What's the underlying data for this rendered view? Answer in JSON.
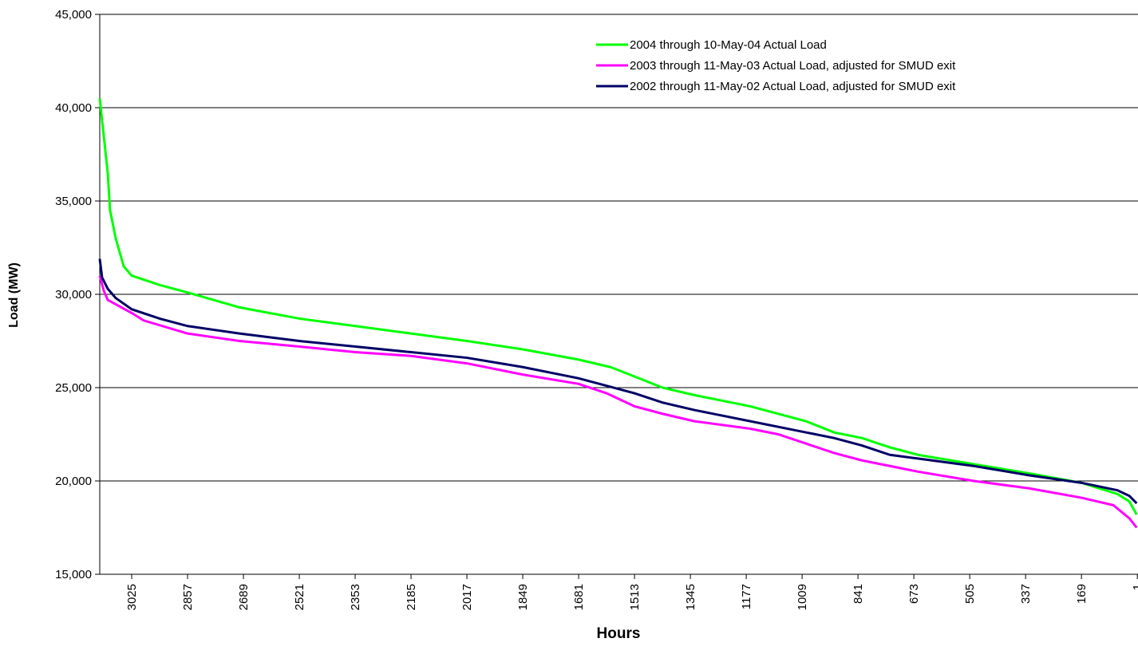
{
  "chart_data": {
    "type": "line",
    "xlabel": "Hours",
    "ylabel": "Load (MW)",
    "xlim": [
      3121,
      -1
    ],
    "xticks": [
      3025,
      2857,
      2689,
      2521,
      2353,
      2185,
      2017,
      1849,
      1681,
      1513,
      1345,
      1177,
      1009,
      841,
      673,
      505,
      337,
      169,
      1
    ],
    "ylim": [
      15000,
      45000
    ],
    "yticks": [
      {
        "value": 15000,
        "label": "15,000"
      },
      {
        "value": 20000,
        "label": "20,000"
      },
      {
        "value": 25000,
        "label": "25,000"
      },
      {
        "value": 30000,
        "label": "30,000"
      },
      {
        "value": 35000,
        "label": "35,000"
      },
      {
        "value": 40000,
        "label": "40,000"
      },
      {
        "value": 45000,
        "label": "45,000"
      }
    ],
    "grid": true,
    "legend": "top-right",
    "series": [
      {
        "name": "2004 through 10-May-04 Actual Load",
        "color": "#00ff00",
        "x": [
          3121,
          3109,
          3097,
          3090,
          3073,
          3049,
          3025,
          2941,
          2857,
          2701,
          2521,
          2353,
          2185,
          2017,
          1849,
          1681,
          1585,
          1513,
          1429,
          1333,
          1165,
          997,
          913,
          829,
          745,
          661,
          493,
          325,
          169,
          61,
          25,
          3
        ],
        "values": [
          40500,
          38500,
          36500,
          34500,
          33000,
          31500,
          31000,
          30500,
          30100,
          29300,
          28700,
          28300,
          27900,
          27500,
          27050,
          26500,
          26100,
          25600,
          25000,
          24600,
          24000,
          23200,
          22600,
          22300,
          21800,
          21400,
          20900,
          20400,
          19900,
          19300,
          18900,
          18200
        ]
      },
      {
        "name": "2003 through 11-May-03 Actual Load, adjusted for SMUD exit",
        "color": "#ff00ff",
        "x": [
          3121,
          3109,
          3097,
          3025,
          2989,
          2857,
          2701,
          2521,
          2353,
          2185,
          2017,
          1849,
          1681,
          1597,
          1513,
          1429,
          1333,
          1165,
          1081,
          997,
          913,
          829,
          661,
          493,
          325,
          169,
          73,
          25,
          3
        ],
        "values": [
          31000,
          30200,
          29700,
          29000,
          28600,
          27900,
          27500,
          27200,
          26900,
          26700,
          26300,
          25700,
          25200,
          24700,
          24000,
          23600,
          23200,
          22800,
          22500,
          22000,
          21500,
          21100,
          20500,
          20000,
          19600,
          19100,
          18700,
          18000,
          17500
        ]
      },
      {
        "name": "2002 through 11-May-02 Actual Load, adjusted for SMUD exit",
        "color": "#000066",
        "x": [
          3121,
          3114,
          3097,
          3073,
          3025,
          2941,
          2857,
          2701,
          2521,
          2353,
          2185,
          2017,
          1849,
          1681,
          1597,
          1513,
          1429,
          1333,
          1165,
          997,
          913,
          829,
          745,
          661,
          493,
          325,
          169,
          61,
          25,
          3
        ],
        "values": [
          31900,
          30900,
          30300,
          29800,
          29200,
          28700,
          28300,
          27900,
          27500,
          27200,
          26900,
          26600,
          26100,
          25500,
          25100,
          24700,
          24200,
          23800,
          23200,
          22600,
          22300,
          21900,
          21400,
          21200,
          20800,
          20300,
          19900,
          19500,
          19200,
          18800
        ]
      }
    ]
  }
}
